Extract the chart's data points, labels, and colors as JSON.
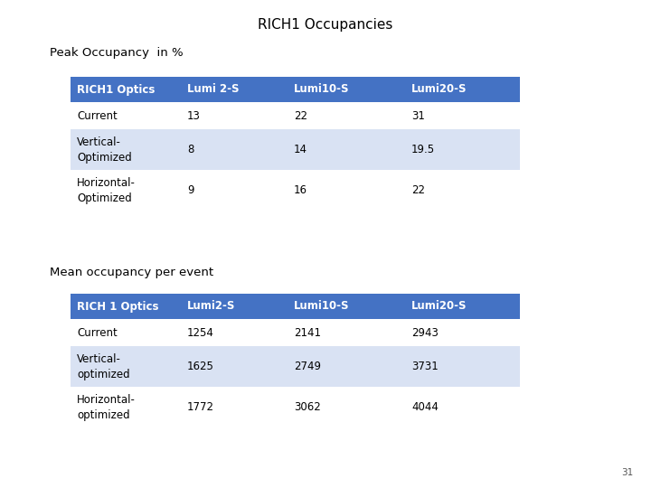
{
  "title": "RICH1 Occupancies",
  "subtitle1": "Peak Occupancy  in %",
  "subtitle2": "Mean occupancy per event",
  "page_number": "31",
  "table1_headers": [
    "RICH1 Optics",
    "Lumi 2-S",
    "Lumi10-S",
    "Lumi20-S"
  ],
  "table1_rows": [
    [
      "Current",
      "13",
      "22",
      "31"
    ],
    [
      "Vertical-\nOptimized",
      "8",
      "14",
      "19.5"
    ],
    [
      "Horizontal-\nOptimized",
      "9",
      "16",
      "22"
    ]
  ],
  "table2_headers": [
    "RICH 1 Optics",
    "Lumi2-S",
    "Lumi10-S",
    "Lumi20-S"
  ],
  "table2_rows": [
    [
      "Current",
      "1254",
      "2141",
      "2943"
    ],
    [
      "Vertical-\noptimized",
      "1625",
      "2749",
      "3731"
    ],
    [
      "Horizontal-\noptimized",
      "1772",
      "3062",
      "4044"
    ]
  ],
  "header_bg": "#4472C4",
  "header_fg": "#FFFFFF",
  "row_even_bg": "#D9E2F3",
  "row_odd_bg": "#FFFFFF",
  "row_fg": "#000000",
  "bg_color": "#FFFFFF",
  "title_fontsize": 11,
  "subtitle_fontsize": 9.5,
  "table_fontsize": 8.5,
  "page_fontsize": 7.5
}
